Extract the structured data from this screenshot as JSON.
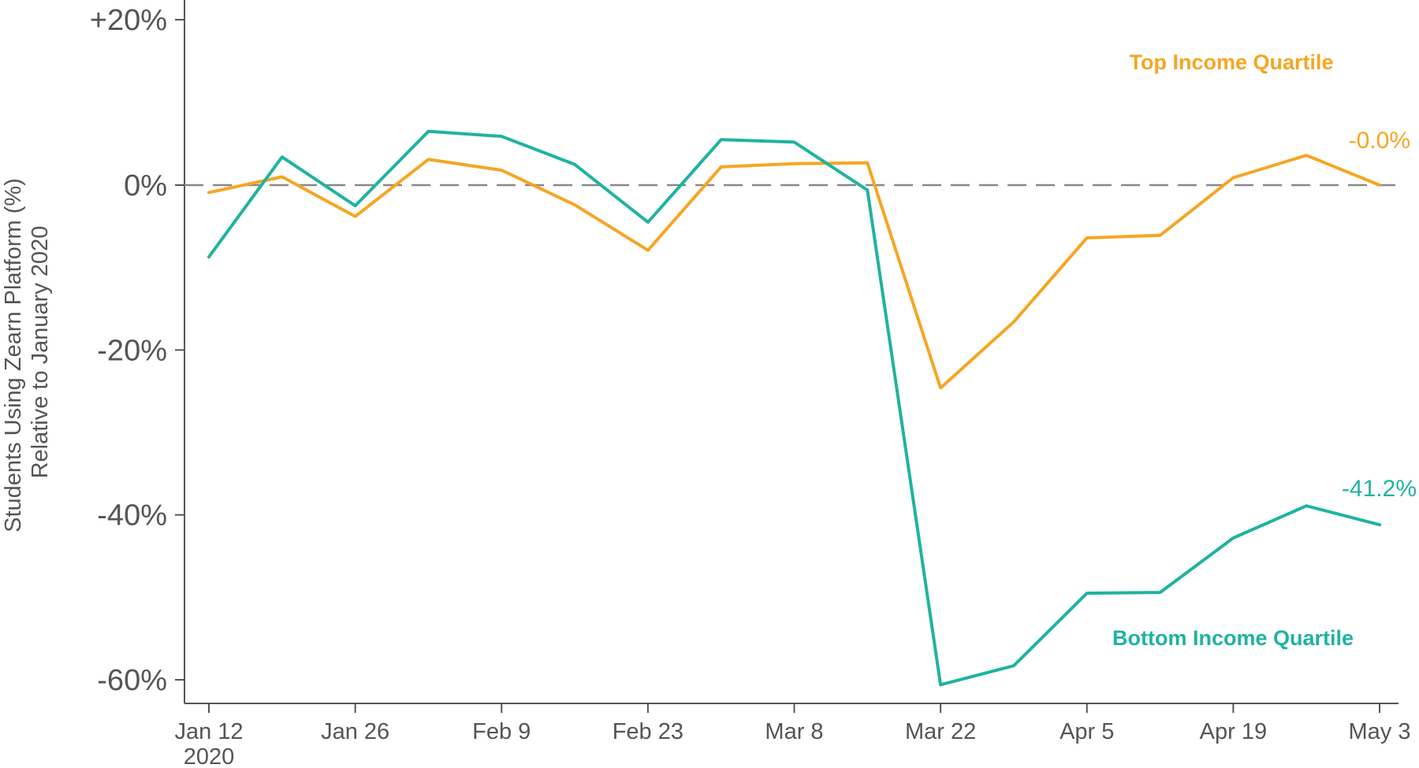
{
  "chart_data": {
    "type": "line",
    "ylabel_lines": [
      "Students Using Zearn Platform (%)",
      "Relative to January 2020"
    ],
    "ylim": [
      -60,
      20
    ],
    "yticks": [
      {
        "value": 20,
        "label": "+20%"
      },
      {
        "value": 0,
        "label": "0%"
      },
      {
        "value": -20,
        "label": "-20%"
      },
      {
        "value": -40,
        "label": "-40%"
      },
      {
        "value": -60,
        "label": "-60%"
      }
    ],
    "xticks": [
      {
        "week": 0,
        "label": "Jan 12",
        "sublabel": "2020"
      },
      {
        "week": 2,
        "label": "Jan 26"
      },
      {
        "week": 4,
        "label": "Feb 9"
      },
      {
        "week": 6,
        "label": "Feb 23"
      },
      {
        "week": 8,
        "label": "Mar 8"
      },
      {
        "week": 10,
        "label": "Mar 22"
      },
      {
        "week": 12,
        "label": "Apr 5"
      },
      {
        "week": 14,
        "label": "Apr 19"
      },
      {
        "week": 16,
        "label": "May 3"
      }
    ],
    "x": [
      "2020-01-12",
      "2020-01-19",
      "2020-01-26",
      "2020-02-02",
      "2020-02-09",
      "2020-02-16",
      "2020-02-23",
      "2020-03-01",
      "2020-03-08",
      "2020-03-15",
      "2020-03-22",
      "2020-03-29",
      "2020-04-05",
      "2020-04-12",
      "2020-04-19",
      "2020-04-26",
      "2020-05-03"
    ],
    "reference_line": {
      "y": 0,
      "style": "dashed",
      "color": "#888888"
    },
    "grid": false,
    "series": [
      {
        "name": "Top Income Quartile",
        "color": "#F5A623",
        "values": [
          -0.9,
          1.0,
          -3.8,
          3.1,
          1.8,
          -2.4,
          -7.9,
          2.2,
          2.6,
          2.7,
          -24.6,
          -16.6,
          -6.4,
          -6.1,
          0.9,
          3.6,
          -0.0
        ],
        "end_label": "-0.0%"
      },
      {
        "name": "Bottom Income Quartile",
        "color": "#1FB3A0",
        "values": [
          -8.7,
          3.4,
          -2.5,
          6.5,
          5.9,
          2.5,
          -4.5,
          5.5,
          5.2,
          -0.6,
          -60.6,
          -58.3,
          -49.5,
          -49.4,
          -42.8,
          -38.9,
          -41.2
        ],
        "end_label": "-41.2%"
      }
    ]
  }
}
